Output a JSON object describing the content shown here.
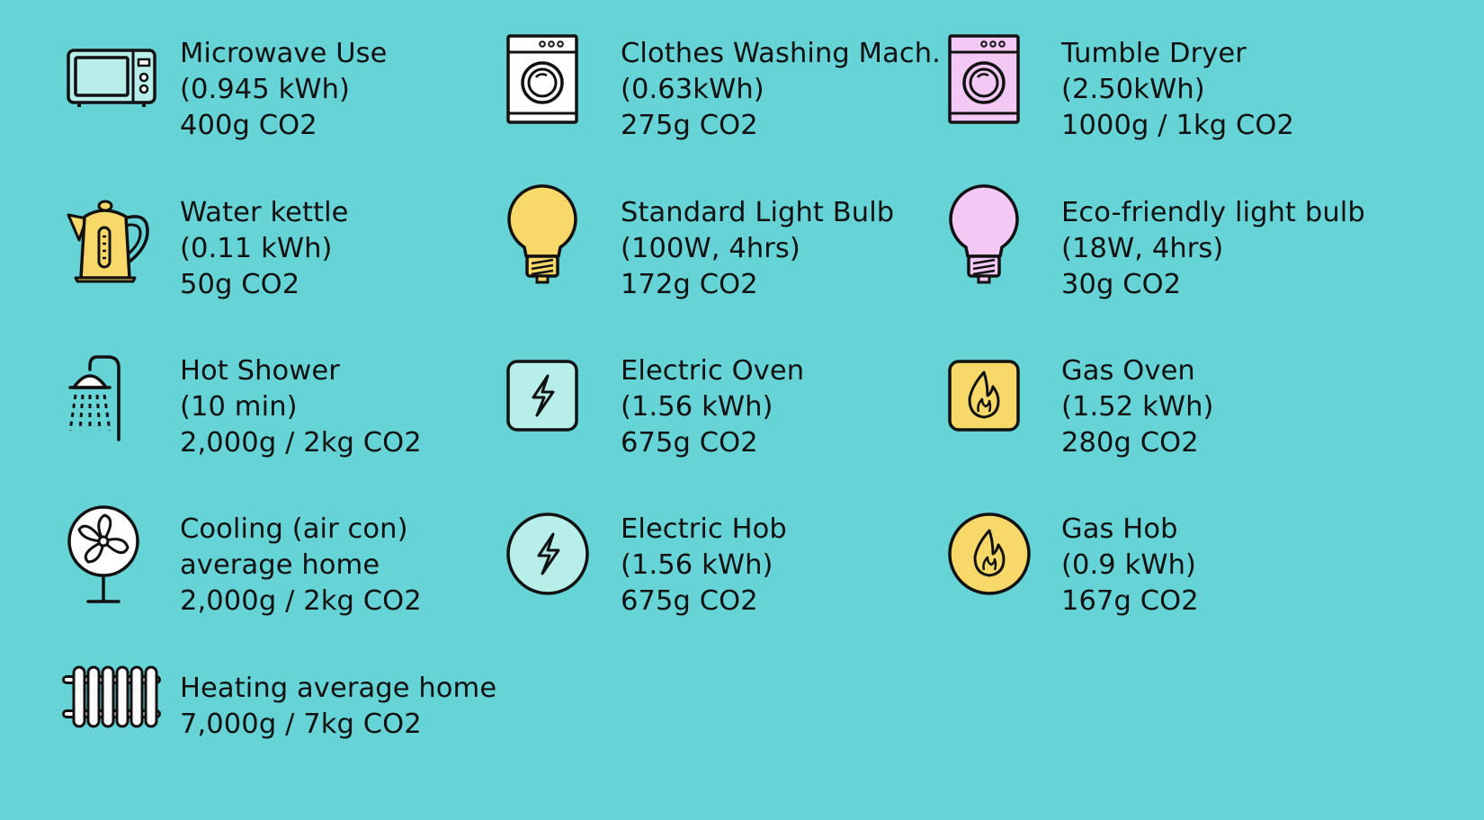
{
  "colors": {
    "background": "#66D4D6",
    "stroke": "#111111",
    "mint": "#B8EEEA",
    "yellow": "#F8D869",
    "pink": "#F4C8F4",
    "white": "#FFFFFF"
  },
  "items": [
    {
      "icon": "microwave-icon",
      "lines": [
        "Microwave Use",
        "(0.945 kWh)",
        "400g CO2"
      ]
    },
    {
      "icon": "washing-machine-icon",
      "lines": [
        "Clothes Washing Mach.",
        "(0.63kWh)",
        "275g CO2"
      ]
    },
    {
      "icon": "tumble-dryer-icon",
      "lines": [
        "Tumble Dryer",
        "(2.50kWh)",
        "1000g / 1kg CO2"
      ]
    },
    {
      "icon": "kettle-icon",
      "lines": [
        "Water kettle",
        "(0.11 kWh)",
        "50g CO2"
      ]
    },
    {
      "icon": "light-bulb-icon",
      "lines": [
        "Standard Light Bulb",
        "(100W, 4hrs)",
        "172g CO2"
      ]
    },
    {
      "icon": "eco-light-bulb-icon",
      "lines": [
        "Eco-friendly light bulb",
        "(18W, 4hrs)",
        "30g CO2"
      ]
    },
    {
      "icon": "shower-icon",
      "lines": [
        "Hot Shower",
        "(10 min)",
        "2,000g / 2kg CO2"
      ]
    },
    {
      "icon": "electric-oven-icon",
      "lines": [
        "Electric Oven",
        "(1.56 kWh)",
        "675g CO2"
      ]
    },
    {
      "icon": "gas-oven-icon",
      "lines": [
        "Gas Oven",
        "(1.52 kWh)",
        "280g CO2"
      ]
    },
    {
      "icon": "fan-icon",
      "lines": [
        "Cooling (air con)",
        "average home",
        "2,000g / 2kg CO2"
      ]
    },
    {
      "icon": "electric-hob-icon",
      "lines": [
        "Electric Hob",
        "(1.56 kWh)",
        "675g CO2"
      ]
    },
    {
      "icon": "gas-hob-icon",
      "lines": [
        "Gas Hob",
        "(0.9 kWh)",
        "167g CO2"
      ]
    },
    {
      "icon": "radiator-icon",
      "lines": [
        "Heating average home",
        "7,000g / 7kg CO2"
      ]
    }
  ]
}
